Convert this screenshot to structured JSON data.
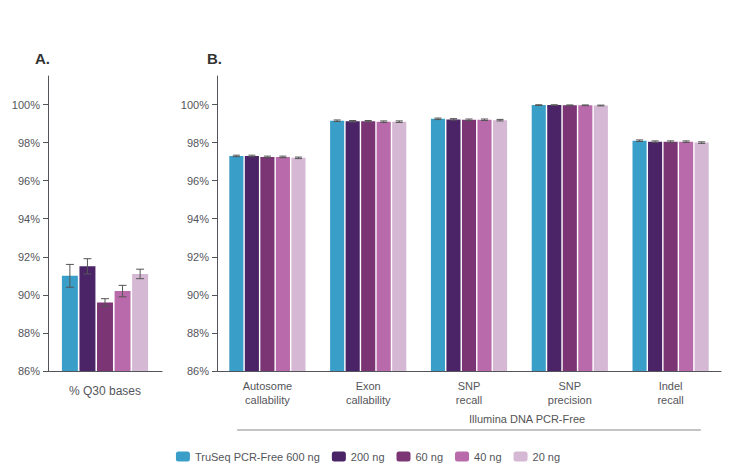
{
  "chart_data": [
    {
      "type": "bar",
      "title": "A.",
      "xlabel": "% Q30 bases",
      "categories": [
        null
      ],
      "series": [
        {
          "name": "TruSeq PCR-Free 600 ng",
          "color": "#3a9fc8",
          "values": [
            91.0
          ],
          "errors": [
            0.6
          ]
        },
        {
          "name": "200 ng",
          "color": "#4b2367",
          "values": [
            91.5
          ],
          "errors": [
            0.4
          ]
        },
        {
          "name": "60 ng",
          "color": "#7b3575",
          "values": [
            89.6
          ],
          "errors": [
            0.2
          ]
        },
        {
          "name": "40 ng",
          "color": "#b96aab",
          "values": [
            90.2
          ],
          "errors": [
            0.3
          ]
        },
        {
          "name": "20 ng",
          "color": "#d4b8d4",
          "values": [
            91.1
          ],
          "errors": [
            0.25
          ]
        }
      ],
      "ylim": [
        86,
        101.5
      ],
      "yticks": [
        {
          "value": 86,
          "label": "86%"
        },
        {
          "value": 88,
          "label": "88%"
        },
        {
          "value": 90,
          "label": "90%"
        },
        {
          "value": 92,
          "label": "92%"
        },
        {
          "value": 94,
          "label": "94%"
        },
        {
          "value": 96,
          "label": "96%"
        },
        {
          "value": 98,
          "label": "98%"
        },
        {
          "value": 100,
          "label": "100%"
        }
      ],
      "grid": false,
      "tick_labels": "y"
    },
    {
      "type": "bar",
      "title": "B.",
      "categories": [
        "Autosome\ncallability",
        "Exon\ncallability",
        "SNP\nrecall",
        "SNP\nprecision",
        "Indel\nrecall"
      ],
      "series": [
        {
          "name": "TruSeq PCR-Free 600 ng",
          "color": "#3a9fc8",
          "values": [
            97.3,
            99.15,
            99.25,
            99.97,
            98.1
          ],
          "errors": [
            0.04,
            0.04,
            0.04,
            0.02,
            0.04
          ]
        },
        {
          "name": "200 ng",
          "color": "#4b2367",
          "values": [
            97.3,
            99.12,
            99.22,
            99.97,
            98.05
          ],
          "errors": [
            0.04,
            0.04,
            0.04,
            0.02,
            0.04
          ]
        },
        {
          "name": "60 ng",
          "color": "#7b3575",
          "values": [
            97.25,
            99.12,
            99.2,
            99.96,
            98.05
          ],
          "errors": [
            0.04,
            0.04,
            0.04,
            0.02,
            0.04
          ]
        },
        {
          "name": "40 ng",
          "color": "#b96aab",
          "values": [
            97.25,
            99.1,
            99.2,
            99.96,
            98.05
          ],
          "errors": [
            0.04,
            0.04,
            0.04,
            0.02,
            0.04
          ]
        },
        {
          "name": "20 ng",
          "color": "#d4b8d4",
          "values": [
            97.2,
            99.1,
            99.18,
            99.95,
            98.0
          ],
          "errors": [
            0.04,
            0.04,
            0.04,
            0.02,
            0.04
          ]
        }
      ],
      "ylim": [
        86,
        101.5
      ],
      "yticks": [
        {
          "value": 86,
          "label": "86%"
        },
        {
          "value": 88,
          "label": "88%"
        },
        {
          "value": 90,
          "label": "90%"
        },
        {
          "value": 92,
          "label": "92%"
        },
        {
          "value": 94,
          "label": "94%"
        },
        {
          "value": 96,
          "label": "96%"
        },
        {
          "value": 98,
          "label": "98%"
        },
        {
          "value": 100,
          "label": "100%"
        }
      ],
      "grid": false,
      "legend": "bottom",
      "annotation": "Illumina DNA PCR-Free"
    }
  ]
}
